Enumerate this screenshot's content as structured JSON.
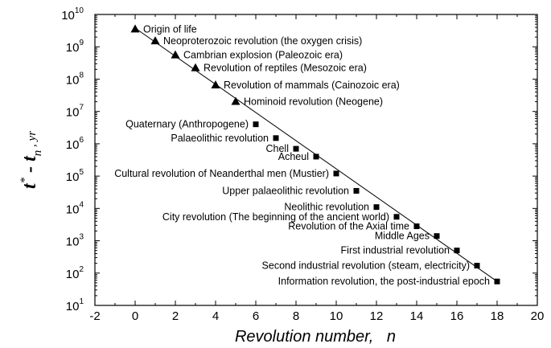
{
  "chart_data": {
    "type": "scatter",
    "title": "",
    "xlabel": "Revolution number,   n",
    "ylabel": {
      "main": "t",
      "sup": "*",
      "mid": " - t",
      "sub": "n",
      "unit": " , yr"
    },
    "xlim": [
      -2,
      20
    ],
    "ylim": [
      10,
      10000000000
    ],
    "y_scale": "log",
    "x_ticks": [
      -2,
      0,
      2,
      4,
      6,
      8,
      10,
      12,
      14,
      16,
      18,
      20
    ],
    "y_ticks": [
      {
        "exp": "1",
        "value": 10
      },
      {
        "exp": "2",
        "value": 100
      },
      {
        "exp": "3",
        "value": 1000
      },
      {
        "exp": "4",
        "value": 10000
      },
      {
        "exp": "5",
        "value": 100000
      },
      {
        "exp": "6",
        "value": 1000000
      },
      {
        "exp": "7",
        "value": 10000000
      },
      {
        "exp": "8",
        "value": 100000000
      },
      {
        "exp": "9",
        "value": 1000000000
      },
      {
        "exp": "10",
        "value": 10000000000
      }
    ],
    "y_tick_base": "10",
    "grid": false,
    "fit_line": {
      "x": [
        0,
        18
      ],
      "y": [
        3800000000,
        55
      ]
    },
    "series": [
      {
        "marker": "triangle",
        "points": [
          {
            "x": 0,
            "y": 3500000000,
            "label": "Origin of life"
          },
          {
            "x": 1,
            "y": 1500000000,
            "label": "Neoproterozoic revolution (the oxygen crisis)"
          },
          {
            "x": 2,
            "y": 550000000,
            "label": "Cambrian explosion (Paleozoic era)"
          },
          {
            "x": 3,
            "y": 220000000,
            "label": "Revolution of reptiles (Mesozoic era)"
          },
          {
            "x": 4,
            "y": 65000000,
            "label": "Revolution of mammals (Cainozoic era)"
          },
          {
            "x": 5,
            "y": 20000000,
            "label": "Hominoid revolution (Neogene)"
          }
        ]
      },
      {
        "marker": "square",
        "points": [
          {
            "x": 6,
            "y": 4000000,
            "label": "Quaternary (Anthropogene)"
          },
          {
            "x": 7,
            "y": 1500000,
            "label": "Palaeolithic revolution"
          },
          {
            "x": 8,
            "y": 700000,
            "label": "Chell"
          },
          {
            "x": 9,
            "y": 400000,
            "label": "Acheul"
          },
          {
            "x": 10,
            "y": 120000,
            "label": "Cultural revolution of Neanderthal men (Mustier)"
          },
          {
            "x": 11,
            "y": 35000,
            "label": "Upper palaeolithic revolution"
          },
          {
            "x": 12,
            "y": 11000,
            "label": "Neolithic revolution"
          },
          {
            "x": 13,
            "y": 5500,
            "label": "City revolution (The beginning of the ancient world)"
          },
          {
            "x": 14,
            "y": 2800,
            "label": "Revolution of the Axial time"
          },
          {
            "x": 15,
            "y": 1400,
            "label": "Middle Ages"
          },
          {
            "x": 16,
            "y": 500,
            "label": "First industrial revolution"
          },
          {
            "x": 17,
            "y": 170,
            "label": "Second industrial revolution (steam, electricity)"
          },
          {
            "x": 18,
            "y": 55,
            "label": "Information revolution, the post-industrial epoch"
          }
        ]
      }
    ]
  }
}
